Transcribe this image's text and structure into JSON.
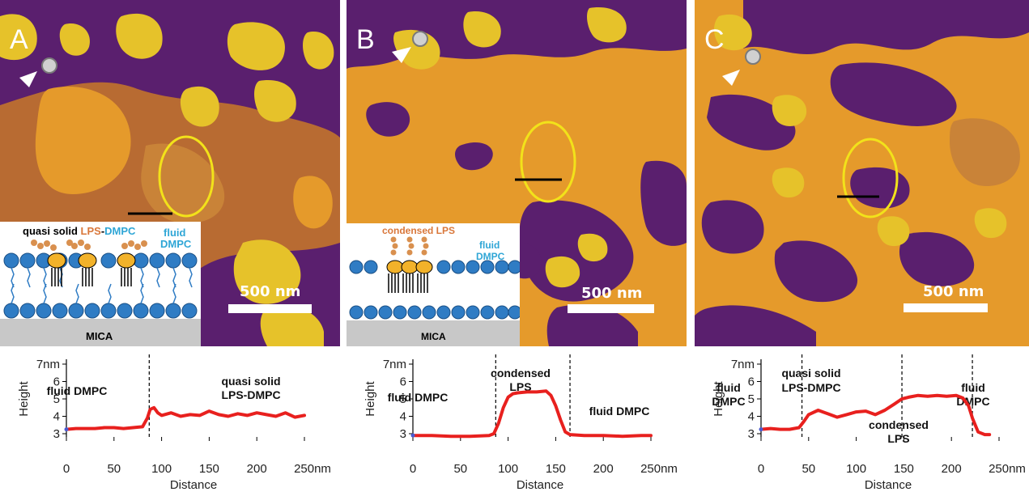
{
  "panels": [
    {
      "letter": "A",
      "scale_label": "500 nm",
      "inset": {
        "label_quasi": "quasi solid ",
        "label_lps": "LPS",
        "label_dash": "-",
        "label_dmpc": "DMPC",
        "label_fluid": "fluid",
        "label_fluid_dmpc": "DMPC",
        "label_mica": "MICA"
      }
    },
    {
      "letter": "B",
      "scale_label": "500 nm",
      "inset": {
        "label_condensed": "condensed LPS",
        "label_fluid": "fluid",
        "label_fluid_dmpc": "DMPC",
        "label_mica": "MICA"
      }
    },
    {
      "letter": "C",
      "scale_label": "500 nm"
    }
  ],
  "colors": {
    "afm_dark": "#5a1f6e",
    "afm_mid": "#b86b32",
    "afm_orange": "#e59a2b",
    "afm_yellow": "#e6c22a",
    "circle": "#f2e21a",
    "profile_line": "#e8201e",
    "lipid_head": "#2f7cc4",
    "lps_head": "#f2b22a",
    "lps_chain": "#d9904f",
    "inset_lps_text": "#d9773a",
    "inset_fluid_text": "#2fa6d6"
  },
  "chart_data": [
    {
      "type": "line",
      "xlabel": "Distance",
      "ylabel": "Height",
      "x_unit": "nm",
      "y_unit": "nm",
      "xlim": [
        0,
        250
      ],
      "ylim": [
        3,
        7
      ],
      "xticks": [
        "0",
        "50",
        "100",
        "150",
        "200",
        "250nm"
      ],
      "yticks": [
        "3",
        "4",
        "5",
        "6",
        "7nm"
      ],
      "dividers": [
        87
      ],
      "annotations": [
        "fluid DMPC",
        "quasi solid",
        "LPS-DMPC"
      ],
      "series": [
        {
          "x": [
            0,
            10,
            20,
            30,
            40,
            50,
            60,
            70,
            80,
            85,
            88,
            92,
            96,
            100,
            110,
            120,
            130,
            140,
            150,
            160,
            170,
            180,
            190,
            200,
            210,
            220,
            230,
            240,
            250
          ],
          "y": [
            3.25,
            3.3,
            3.3,
            3.3,
            3.35,
            3.35,
            3.3,
            3.35,
            3.4,
            3.9,
            4.4,
            4.5,
            4.2,
            4.05,
            4.2,
            4.0,
            4.1,
            4.05,
            4.3,
            4.1,
            4.0,
            4.15,
            4.05,
            4.2,
            4.1,
            4.0,
            4.2,
            3.95,
            4.05
          ]
        }
      ]
    },
    {
      "type": "line",
      "xlabel": "Distance",
      "ylabel": "Height",
      "x_unit": "nm",
      "y_unit": "nm",
      "xlim": [
        0,
        250
      ],
      "ylim": [
        3,
        7
      ],
      "xticks": [
        "0",
        "50",
        "100",
        "150",
        "200",
        "250nm"
      ],
      "yticks": [
        "3",
        "4",
        "5",
        "6",
        "7nm"
      ],
      "dividers": [
        87,
        165
      ],
      "annotations": [
        "fluid DMPC",
        "condensed",
        "LPS",
        "fluid DMPC"
      ],
      "series": [
        {
          "x": [
            0,
            20,
            40,
            60,
            80,
            85,
            90,
            95,
            100,
            105,
            110,
            120,
            130,
            140,
            145,
            150,
            155,
            160,
            165,
            180,
            200,
            220,
            240,
            250
          ],
          "y": [
            2.9,
            2.9,
            2.85,
            2.85,
            2.9,
            3.0,
            3.6,
            4.5,
            5.1,
            5.3,
            5.35,
            5.4,
            5.4,
            5.45,
            5.2,
            4.6,
            3.8,
            3.1,
            2.95,
            2.9,
            2.9,
            2.85,
            2.9,
            2.9
          ]
        }
      ]
    },
    {
      "type": "line",
      "xlabel": "Distance",
      "ylabel": "Height",
      "x_unit": "nm",
      "y_unit": "nm",
      "xlim": [
        0,
        250
      ],
      "ylim": [
        3,
        7
      ],
      "xticks": [
        "0",
        "50",
        "100",
        "150",
        "200",
        "250nm"
      ],
      "yticks": [
        "3",
        "4",
        "5",
        "6",
        "7nm"
      ],
      "dividers": [
        43,
        148,
        222
      ],
      "annotations": [
        "fluid",
        "DMPC",
        "quasi solid",
        "LPS-DMPC",
        "condensed",
        "LPS",
        "fluid",
        "DMPC"
      ],
      "series": [
        {
          "x": [
            0,
            10,
            20,
            30,
            40,
            45,
            50,
            60,
            70,
            80,
            90,
            100,
            110,
            120,
            130,
            140,
            148,
            155,
            165,
            175,
            185,
            195,
            205,
            212,
            218,
            222,
            228,
            235,
            240
          ],
          "y": [
            3.25,
            3.3,
            3.25,
            3.25,
            3.35,
            3.7,
            4.1,
            4.35,
            4.15,
            3.95,
            4.1,
            4.25,
            4.3,
            4.1,
            4.35,
            4.7,
            5.0,
            5.1,
            5.2,
            5.15,
            5.2,
            5.15,
            5.2,
            5.05,
            4.6,
            3.9,
            3.1,
            2.95,
            2.95
          ]
        }
      ]
    }
  ]
}
